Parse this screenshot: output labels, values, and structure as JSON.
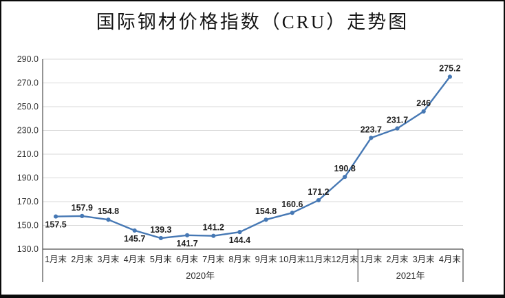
{
  "title": "国际钢材价格指数（CRU）走势图",
  "chart_data": {
    "type": "line",
    "title": "国际钢材价格指数（CRU）走势图",
    "categories": [
      "1月末",
      "2月末",
      "3月末",
      "4月末",
      "5月末",
      "6月末",
      "7月末",
      "8月末",
      "9月末",
      "10月末",
      "11月末",
      "12月末",
      "1月末",
      "2月末",
      "3月末",
      "4月末"
    ],
    "year_groups": [
      {
        "label": "2020年",
        "count": 12
      },
      {
        "label": "2021年",
        "count": 4
      }
    ],
    "series": [
      {
        "name": "国际钢材价格指数（CRU）",
        "values": [
          157.5,
          157.9,
          154.8,
          145.7,
          139.3,
          141.7,
          141.2,
          144.4,
          154.8,
          160.6,
          171.2,
          190.8,
          223.7,
          231.7,
          246,
          275.2
        ]
      }
    ],
    "data_labels": [
      "157.5",
      "157.9",
      "154.8",
      "145.7",
      "139.3",
      "141.7",
      "141.2",
      "144.4",
      "154.8",
      "160.6",
      "171.2",
      "190.8",
      "223.7",
      "231.7",
      "246",
      "275.2"
    ],
    "label_positions": [
      "below",
      "above",
      "above",
      "below",
      "above",
      "below",
      "above",
      "below",
      "above",
      "above",
      "above",
      "above",
      "above",
      "above",
      "above",
      "above"
    ],
    "y_axis": {
      "min": 130,
      "max": 290,
      "step": 20,
      "tick_labels": [
        "130.0",
        "150.0",
        "170.0",
        "190.0",
        "210.0",
        "230.0",
        "250.0",
        "270.0",
        "290.0"
      ]
    },
    "grid": true,
    "legend": "none",
    "colors": {
      "line": "#4678b4",
      "marker": "#4678b4",
      "grid": "#d9d9d9",
      "axis": "#4d4d4d",
      "label_text": "#1f1f1f"
    }
  }
}
